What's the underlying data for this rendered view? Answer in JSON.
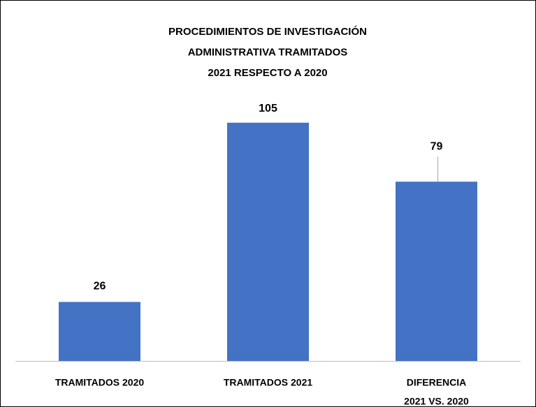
{
  "chart_data": {
    "type": "bar",
    "title": [
      "PROCEDIMIENTOS DE INVESTIGACIÓN",
      "ADMINISTRATIVA TRAMITADOS",
      "2021 RESPECTO A 2020"
    ],
    "categories": [
      [
        "TRAMITADOS 2020"
      ],
      [
        "TRAMITADOS 2021"
      ],
      [
        "DIFERENCIA",
        "2021 VS. 2020"
      ]
    ],
    "values": [
      26,
      105,
      79
    ],
    "color": "#4472c4",
    "ylim": [
      0,
      120
    ]
  }
}
